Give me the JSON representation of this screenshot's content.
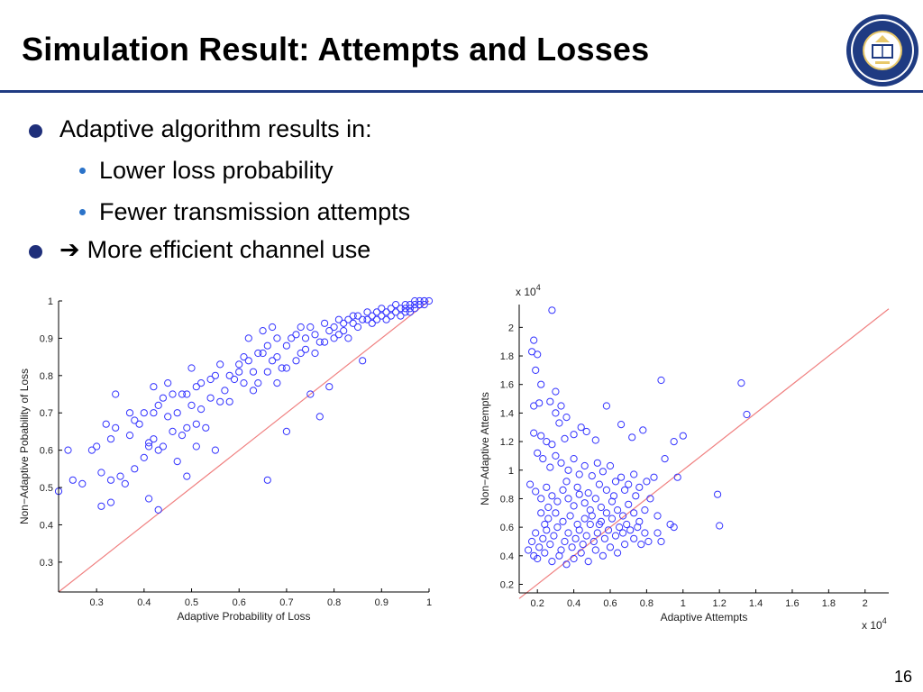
{
  "slide": {
    "title": "Simulation Result: Attempts and Losses",
    "page_number": "16",
    "bullets": [
      {
        "text": "Adaptive algorithm results in:"
      },
      {
        "text": "Lower loss probability"
      },
      {
        "text": "Fewer transmission attempts"
      },
      {
        "arrow": "➔",
        "text": "More efficient channel use"
      }
    ],
    "colors": {
      "accent": "#1f3b82",
      "marker": "#3333ff",
      "reference_line": "#f08080",
      "sub_bullet": "#2b73c9"
    },
    "seal_icon": "university-seal-icon"
  },
  "chart_data": [
    {
      "type": "scatter",
      "title": "",
      "xlabel": "Adaptive Probability of Loss",
      "ylabel": "Non−Adaptive Pobability of Loss",
      "xlim": [
        0.22,
        1.0
      ],
      "ylim": [
        0.22,
        1.0
      ],
      "xticks": [
        "0.3",
        "0.4",
        "0.5",
        "0.6",
        "0.7",
        "0.8",
        "0.9",
        "1"
      ],
      "yticks": [
        "0.3",
        "0.4",
        "0.5",
        "0.6",
        "0.7",
        "0.8",
        "0.9",
        "1"
      ],
      "xtick_values": [
        0.3,
        0.4,
        0.5,
        0.6,
        0.7,
        0.8,
        0.9,
        1.0
      ],
      "ytick_values": [
        0.3,
        0.4,
        0.5,
        0.6,
        0.7,
        0.8,
        0.9,
        1.0
      ],
      "reference_line": [
        [
          0.22,
          0.22
        ],
        [
          1.0,
          1.0
        ]
      ],
      "points": [
        [
          0.22,
          0.49
        ],
        [
          0.24,
          0.6
        ],
        [
          0.25,
          0.52
        ],
        [
          0.27,
          0.51
        ],
        [
          0.29,
          0.6
        ],
        [
          0.3,
          0.61
        ],
        [
          0.31,
          0.45
        ],
        [
          0.31,
          0.54
        ],
        [
          0.32,
          0.67
        ],
        [
          0.33,
          0.46
        ],
        [
          0.33,
          0.52
        ],
        [
          0.33,
          0.63
        ],
        [
          0.34,
          0.66
        ],
        [
          0.34,
          0.75
        ],
        [
          0.35,
          0.53
        ],
        [
          0.36,
          0.51
        ],
        [
          0.37,
          0.64
        ],
        [
          0.37,
          0.7
        ],
        [
          0.38,
          0.55
        ],
        [
          0.38,
          0.68
        ],
        [
          0.39,
          0.67
        ],
        [
          0.4,
          0.58
        ],
        [
          0.4,
          0.7
        ],
        [
          0.41,
          0.47
        ],
        [
          0.41,
          0.61
        ],
        [
          0.41,
          0.62
        ],
        [
          0.42,
          0.7
        ],
        [
          0.42,
          0.77
        ],
        [
          0.42,
          0.63
        ],
        [
          0.43,
          0.72
        ],
        [
          0.43,
          0.6
        ],
        [
          0.43,
          0.44
        ],
        [
          0.44,
          0.74
        ],
        [
          0.44,
          0.61
        ],
        [
          0.45,
          0.69
        ],
        [
          0.45,
          0.78
        ],
        [
          0.46,
          0.65
        ],
        [
          0.46,
          0.75
        ],
        [
          0.47,
          0.57
        ],
        [
          0.47,
          0.7
        ],
        [
          0.48,
          0.64
        ],
        [
          0.48,
          0.75
        ],
        [
          0.49,
          0.66
        ],
        [
          0.49,
          0.75
        ],
        [
          0.49,
          0.53
        ],
        [
          0.5,
          0.82
        ],
        [
          0.5,
          0.72
        ],
        [
          0.51,
          0.77
        ],
        [
          0.51,
          0.67
        ],
        [
          0.51,
          0.61
        ],
        [
          0.52,
          0.71
        ],
        [
          0.52,
          0.78
        ],
        [
          0.53,
          0.66
        ],
        [
          0.54,
          0.74
        ],
        [
          0.54,
          0.79
        ],
        [
          0.55,
          0.6
        ],
        [
          0.55,
          0.8
        ],
        [
          0.56,
          0.83
        ],
        [
          0.56,
          0.73
        ],
        [
          0.57,
          0.76
        ],
        [
          0.58,
          0.73
        ],
        [
          0.58,
          0.8
        ],
        [
          0.59,
          0.79
        ],
        [
          0.6,
          0.81
        ],
        [
          0.6,
          0.83
        ],
        [
          0.61,
          0.85
        ],
        [
          0.61,
          0.78
        ],
        [
          0.62,
          0.84
        ],
        [
          0.62,
          0.9
        ],
        [
          0.63,
          0.81
        ],
        [
          0.63,
          0.76
        ],
        [
          0.64,
          0.78
        ],
        [
          0.64,
          0.86
        ],
        [
          0.65,
          0.92
        ],
        [
          0.65,
          0.86
        ],
        [
          0.66,
          0.88
        ],
        [
          0.66,
          0.81
        ],
        [
          0.66,
          0.52
        ],
        [
          0.67,
          0.84
        ],
        [
          0.67,
          0.93
        ],
        [
          0.68,
          0.85
        ],
        [
          0.68,
          0.9
        ],
        [
          0.68,
          0.78
        ],
        [
          0.69,
          0.82
        ],
        [
          0.7,
          0.82
        ],
        [
          0.7,
          0.88
        ],
        [
          0.7,
          0.65
        ],
        [
          0.71,
          0.9
        ],
        [
          0.72,
          0.84
        ],
        [
          0.72,
          0.91
        ],
        [
          0.73,
          0.86
        ],
        [
          0.73,
          0.93
        ],
        [
          0.74,
          0.87
        ],
        [
          0.74,
          0.9
        ],
        [
          0.75,
          0.75
        ],
        [
          0.75,
          0.93
        ],
        [
          0.76,
          0.91
        ],
        [
          0.76,
          0.86
        ],
        [
          0.77,
          0.89
        ],
        [
          0.77,
          0.69
        ],
        [
          0.78,
          0.94
        ],
        [
          0.78,
          0.89
        ],
        [
          0.79,
          0.77
        ],
        [
          0.79,
          0.92
        ],
        [
          0.8,
          0.93
        ],
        [
          0.8,
          0.9
        ],
        [
          0.81,
          0.91
        ],
        [
          0.81,
          0.95
        ],
        [
          0.82,
          0.94
        ],
        [
          0.82,
          0.92
        ],
        [
          0.83,
          0.95
        ],
        [
          0.83,
          0.9
        ],
        [
          0.84,
          0.96
        ],
        [
          0.84,
          0.94
        ],
        [
          0.85,
          0.93
        ],
        [
          0.85,
          0.96
        ],
        [
          0.86,
          0.84
        ],
        [
          0.86,
          0.95
        ],
        [
          0.87,
          0.97
        ],
        [
          0.87,
          0.95
        ],
        [
          0.88,
          0.96
        ],
        [
          0.88,
          0.94
        ],
        [
          0.89,
          0.97
        ],
        [
          0.89,
          0.95
        ],
        [
          0.9,
          0.96
        ],
        [
          0.9,
          0.98
        ],
        [
          0.91,
          0.97
        ],
        [
          0.91,
          0.95
        ],
        [
          0.92,
          0.98
        ],
        [
          0.92,
          0.96
        ],
        [
          0.93,
          0.97
        ],
        [
          0.93,
          0.99
        ],
        [
          0.94,
          0.98
        ],
        [
          0.94,
          0.96
        ],
        [
          0.95,
          0.99
        ],
        [
          0.95,
          0.97
        ],
        [
          0.96,
          0.99
        ],
        [
          0.96,
          0.98
        ],
        [
          0.97,
          0.99
        ],
        [
          0.97,
          1.0
        ],
        [
          0.98,
          0.99
        ],
        [
          0.98,
          1.0
        ],
        [
          0.99,
          1.0
        ],
        [
          0.99,
          0.99
        ],
        [
          1.0,
          1.0
        ],
        [
          0.99,
          1.0
        ],
        [
          0.98,
          0.99
        ],
        [
          0.97,
          0.98
        ],
        [
          0.96,
          0.97
        ],
        [
          0.95,
          0.98
        ]
      ]
    },
    {
      "type": "scatter",
      "title": "",
      "xlabel": "Adaptive Attempts",
      "ylabel": "Non−Adaptive Attempts",
      "x_multiplier": "x 10",
      "x_multiplier_exp": "4",
      "y_multiplier": "x 10",
      "y_multiplier_exp": "4",
      "xlim": [
        0.1,
        2.13
      ],
      "ylim": [
        0.14,
        2.16
      ],
      "xticks": [
        "0.2",
        "0.4",
        "0.6",
        "0.8",
        "1",
        "1.2",
        "1.4",
        "1.6",
        "1.8",
        "2"
      ],
      "yticks": [
        "0.2",
        "0.4",
        "0.6",
        "0.8",
        "1",
        "1.2",
        "1.4",
        "1.6",
        "1.8",
        "2"
      ],
      "xtick_values": [
        0.2,
        0.4,
        0.6,
        0.8,
        1.0,
        1.2,
        1.4,
        1.6,
        1.8,
        2.0
      ],
      "ytick_values": [
        0.2,
        0.4,
        0.6,
        0.8,
        1.0,
        1.2,
        1.4,
        1.6,
        1.8,
        2.0
      ],
      "reference_line": [
        [
          0.1,
          0.1
        ],
        [
          2.13,
          2.13
        ]
      ],
      "points": [
        [
          0.28,
          2.12
        ],
        [
          0.18,
          1.91
        ],
        [
          0.17,
          1.83
        ],
        [
          0.2,
          1.81
        ],
        [
          0.19,
          1.7
        ],
        [
          0.22,
          1.6
        ],
        [
          0.18,
          1.45
        ],
        [
          0.21,
          1.47
        ],
        [
          0.27,
          1.48
        ],
        [
          0.3,
          1.55
        ],
        [
          0.33,
          1.45
        ],
        [
          0.3,
          1.4
        ],
        [
          0.36,
          1.37
        ],
        [
          0.32,
          1.33
        ],
        [
          0.18,
          1.26
        ],
        [
          0.22,
          1.24
        ],
        [
          0.25,
          1.2
        ],
        [
          0.28,
          1.18
        ],
        [
          0.35,
          1.22
        ],
        [
          0.4,
          1.25
        ],
        [
          0.44,
          1.3
        ],
        [
          0.47,
          1.27
        ],
        [
          0.52,
          1.21
        ],
        [
          0.58,
          1.45
        ],
        [
          0.66,
          1.32
        ],
        [
          0.72,
          1.23
        ],
        [
          0.78,
          1.28
        ],
        [
          0.88,
          1.63
        ],
        [
          0.95,
          1.2
        ],
        [
          1.0,
          1.24
        ],
        [
          1.32,
          1.61
        ],
        [
          1.35,
          1.39
        ],
        [
          0.2,
          1.12
        ],
        [
          0.23,
          1.08
        ],
        [
          0.27,
          1.02
        ],
        [
          0.3,
          1.1
        ],
        [
          0.33,
          1.05
        ],
        [
          0.37,
          1.0
        ],
        [
          0.4,
          1.08
        ],
        [
          0.43,
          0.97
        ],
        [
          0.46,
          1.03
        ],
        [
          0.5,
          0.96
        ],
        [
          0.53,
          1.05
        ],
        [
          0.56,
          0.99
        ],
        [
          0.6,
          1.03
        ],
        [
          0.63,
          0.92
        ],
        [
          0.66,
          0.95
        ],
        [
          0.7,
          0.9
        ],
        [
          0.73,
          0.97
        ],
        [
          0.76,
          0.88
        ],
        [
          0.8,
          0.92
        ],
        [
          0.84,
          0.95
        ],
        [
          0.9,
          1.08
        ],
        [
          0.97,
          0.95
        ],
        [
          0.16,
          0.9
        ],
        [
          0.19,
          0.85
        ],
        [
          0.22,
          0.8
        ],
        [
          0.25,
          0.88
        ],
        [
          0.28,
          0.82
        ],
        [
          0.31,
          0.78
        ],
        [
          0.34,
          0.86
        ],
        [
          0.37,
          0.8
        ],
        [
          0.4,
          0.75
        ],
        [
          0.43,
          0.83
        ],
        [
          0.46,
          0.77
        ],
        [
          0.49,
          0.72
        ],
        [
          0.52,
          0.8
        ],
        [
          0.55,
          0.74
        ],
        [
          0.58,
          0.7
        ],
        [
          0.61,
          0.78
        ],
        [
          0.64,
          0.72
        ],
        [
          0.67,
          0.68
        ],
        [
          0.7,
          0.76
        ],
        [
          0.73,
          0.7
        ],
        [
          0.76,
          0.64
        ],
        [
          0.79,
          0.72
        ],
        [
          0.82,
          0.8
        ],
        [
          0.86,
          0.68
        ],
        [
          0.93,
          0.62
        ],
        [
          1.19,
          0.83
        ],
        [
          1.2,
          0.61
        ],
        [
          0.95,
          0.6
        ],
        [
          0.15,
          0.44
        ],
        [
          0.17,
          0.5
        ],
        [
          0.19,
          0.56
        ],
        [
          0.21,
          0.46
        ],
        [
          0.23,
          0.52
        ],
        [
          0.25,
          0.58
        ],
        [
          0.27,
          0.48
        ],
        [
          0.29,
          0.54
        ],
        [
          0.31,
          0.6
        ],
        [
          0.33,
          0.44
        ],
        [
          0.35,
          0.5
        ],
        [
          0.37,
          0.56
        ],
        [
          0.39,
          0.46
        ],
        [
          0.41,
          0.52
        ],
        [
          0.43,
          0.58
        ],
        [
          0.45,
          0.48
        ],
        [
          0.47,
          0.54
        ],
        [
          0.49,
          0.62
        ],
        [
          0.51,
          0.5
        ],
        [
          0.53,
          0.56
        ],
        [
          0.55,
          0.64
        ],
        [
          0.57,
          0.52
        ],
        [
          0.59,
          0.58
        ],
        [
          0.61,
          0.66
        ],
        [
          0.63,
          0.54
        ],
        [
          0.65,
          0.6
        ],
        [
          0.67,
          0.56
        ],
        [
          0.69,
          0.62
        ],
        [
          0.71,
          0.58
        ],
        [
          0.73,
          0.52
        ],
        [
          0.75,
          0.6
        ],
        [
          0.77,
          0.48
        ],
        [
          0.79,
          0.56
        ],
        [
          0.81,
          0.5
        ],
        [
          0.18,
          0.4
        ],
        [
          0.2,
          0.38
        ],
        [
          0.24,
          0.42
        ],
        [
          0.28,
          0.36
        ],
        [
          0.32,
          0.4
        ],
        [
          0.36,
          0.34
        ],
        [
          0.4,
          0.38
        ],
        [
          0.44,
          0.42
        ],
        [
          0.48,
          0.36
        ],
        [
          0.52,
          0.44
        ],
        [
          0.56,
          0.4
        ],
        [
          0.6,
          0.46
        ],
        [
          0.64,
          0.42
        ],
        [
          0.68,
          0.48
        ],
        [
          0.26,
          0.66
        ],
        [
          0.3,
          0.7
        ],
        [
          0.34,
          0.64
        ],
        [
          0.38,
          0.68
        ],
        [
          0.42,
          0.62
        ],
        [
          0.46,
          0.66
        ],
        [
          0.5,
          0.68
        ],
        [
          0.54,
          0.62
        ],
        [
          0.22,
          0.7
        ],
        [
          0.24,
          0.62
        ],
        [
          0.26,
          0.74
        ],
        [
          0.36,
          0.92
        ],
        [
          0.42,
          0.88
        ],
        [
          0.48,
          0.84
        ],
        [
          0.54,
          0.9
        ],
        [
          0.58,
          0.86
        ],
        [
          0.62,
          0.82
        ],
        [
          0.68,
          0.86
        ],
        [
          0.74,
          0.82
        ],
        [
          0.86,
          0.56
        ],
        [
          0.88,
          0.5
        ]
      ]
    }
  ]
}
